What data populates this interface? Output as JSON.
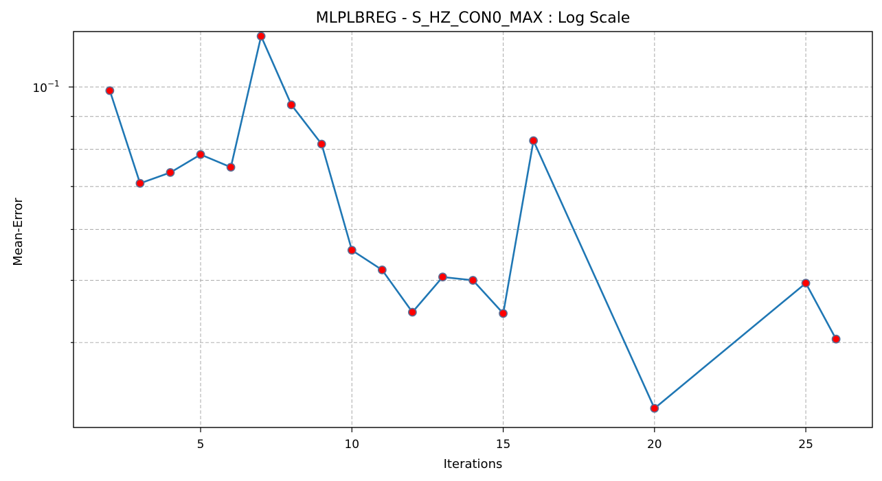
{
  "chart_data": {
    "type": "line",
    "title": "MLPLBREG - S_HZ_CON0_MAX : Log Scale",
    "xlabel": "Iterations",
    "ylabel": "Mean-Error",
    "yscale": "log",
    "grid": true,
    "x_ticks": [
      5,
      10,
      15,
      20,
      25
    ],
    "y_major_tick": {
      "value": 0.1,
      "base": "10",
      "exponent": "−1"
    },
    "y_minor_ticks": [
      0.04,
      0.05,
      0.06,
      0.07,
      0.08,
      0.09
    ],
    "xlim": [
      0.8,
      27.2
    ],
    "ylim": [
      0.0295,
      0.122
    ],
    "series": [
      {
        "line_color": "#1f77b4",
        "marker_color": "#ff0000",
        "marker_edge_color": "#5a6e96",
        "x": [
          2,
          3,
          4,
          5,
          6,
          7,
          8,
          9,
          10,
          11,
          12,
          13,
          14,
          15,
          16,
          20,
          25,
          26
        ],
        "y": [
          0.0987,
          0.0708,
          0.0736,
          0.0785,
          0.075,
          0.12,
          0.0938,
          0.0815,
          0.0557,
          0.0519,
          0.0446,
          0.0506,
          0.05,
          0.0444,
          0.0825,
          0.0316,
          0.0495,
          0.0405
        ]
      }
    ]
  }
}
